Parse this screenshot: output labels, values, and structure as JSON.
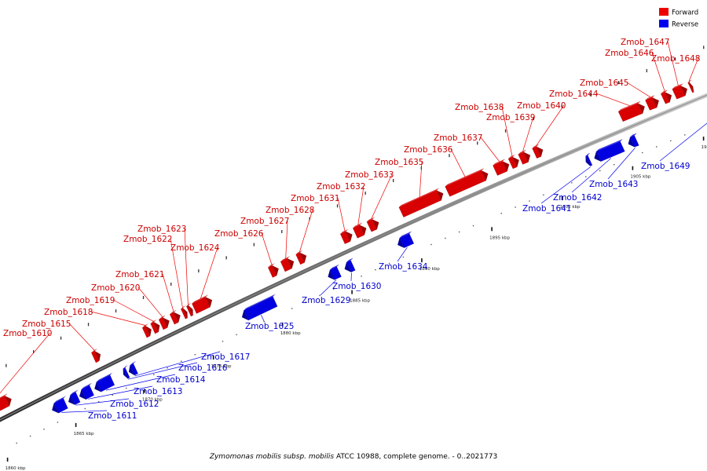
{
  "caption": {
    "organism": "Zymomonas mobilis subsp. mobilis",
    "rest": " ATCC 10988, complete genome. - 0..2021773"
  },
  "legend": [
    {
      "label": "Forward",
      "color": "#ee0000"
    },
    {
      "label": "Reverse",
      "color": "#0000ee"
    }
  ],
  "axis": {
    "scale_kbp": [
      1859.5,
      1912.5
    ],
    "tick_labels": [
      {
        "kbp": 1860,
        "label": "1860 kbp"
      },
      {
        "kbp": 1865,
        "label": "1865 kbp"
      },
      {
        "kbp": 1870,
        "label": "1870 kbp"
      },
      {
        "kbp": 1875,
        "label": "1875 kbp"
      },
      {
        "kbp": 1880,
        "label": "1880 kbp"
      },
      {
        "kbp": 1885,
        "label": "1885 kbp"
      },
      {
        "kbp": 1890,
        "label": "1890 kbp"
      },
      {
        "kbp": 1895,
        "label": "1895 kbp"
      },
      {
        "kbp": 1900,
        "label": "1900 kbp"
      },
      {
        "kbp": 1905,
        "label": "1905 kbp"
      },
      {
        "kbp": 1910,
        "label": "1910 kbp"
      }
    ]
  },
  "genes": [
    {
      "name": "Zmob_1610",
      "strand": "forward",
      "start_kbp": 1859.6,
      "end_kbp": 1861.9
    },
    {
      "name": "Zmob_1611",
      "strand": "reverse",
      "start_kbp": 1864.0,
      "end_kbp": 1865.0
    },
    {
      "name": "Zmob_1612",
      "strand": "reverse",
      "start_kbp": 1865.2,
      "end_kbp": 1865.9
    },
    {
      "name": "Zmob_1613",
      "strand": "reverse",
      "start_kbp": 1866.0,
      "end_kbp": 1866.9
    },
    {
      "name": "Zmob_1614",
      "strand": "reverse",
      "start_kbp": 1867.1,
      "end_kbp": 1868.4
    },
    {
      "name": "Zmob_1615",
      "strand": "forward",
      "start_kbp": 1867.9,
      "end_kbp": 1868.4
    },
    {
      "name": "Zmob_1616",
      "strand": "reverse",
      "start_kbp": 1869.2,
      "end_kbp": 1869.5
    },
    {
      "name": "Zmob_1617",
      "strand": "reverse",
      "start_kbp": 1869.6,
      "end_kbp": 1870.1
    },
    {
      "name": "Zmob_1618",
      "strand": "forward",
      "start_kbp": 1871.6,
      "end_kbp": 1872.1
    },
    {
      "name": "Zmob_1619",
      "strand": "forward",
      "start_kbp": 1872.2,
      "end_kbp": 1872.7
    },
    {
      "name": "Zmob_1620",
      "strand": "forward",
      "start_kbp": 1872.8,
      "end_kbp": 1873.4
    },
    {
      "name": "Zmob_1621",
      "strand": "forward",
      "start_kbp": 1873.6,
      "end_kbp": 1874.2
    },
    {
      "name": "Zmob_1622",
      "strand": "forward",
      "start_kbp": 1874.4,
      "end_kbp": 1874.7
    },
    {
      "name": "Zmob_1623",
      "strand": "forward",
      "start_kbp": 1874.8,
      "end_kbp": 1875.1
    },
    {
      "name": "Zmob_1624",
      "strand": "forward",
      "start_kbp": 1875.2,
      "end_kbp": 1876.5
    },
    {
      "name": "Zmob_1625",
      "strand": "reverse",
      "start_kbp": 1877.8,
      "end_kbp": 1880.2
    },
    {
      "name": "Zmob_1626",
      "strand": "forward",
      "start_kbp": 1880.7,
      "end_kbp": 1881.3
    },
    {
      "name": "Zmob_1627",
      "strand": "forward",
      "start_kbp": 1881.6,
      "end_kbp": 1882.4
    },
    {
      "name": "Zmob_1628",
      "strand": "forward",
      "start_kbp": 1882.7,
      "end_kbp": 1883.3
    },
    {
      "name": "Zmob_1629",
      "strand": "reverse",
      "start_kbp": 1884.0,
      "end_kbp": 1884.8
    },
    {
      "name": "Zmob_1630",
      "strand": "reverse",
      "start_kbp": 1885.2,
      "end_kbp": 1885.8
    },
    {
      "name": "Zmob_1631",
      "strand": "forward",
      "start_kbp": 1885.9,
      "end_kbp": 1886.6
    },
    {
      "name": "Zmob_1632",
      "strand": "forward",
      "start_kbp": 1886.8,
      "end_kbp": 1887.6
    },
    {
      "name": "Zmob_1633",
      "strand": "forward",
      "start_kbp": 1887.8,
      "end_kbp": 1888.5
    },
    {
      "name": "Zmob_1634",
      "strand": "reverse",
      "start_kbp": 1889.0,
      "end_kbp": 1890.0
    },
    {
      "name": "Zmob_1635",
      "strand": "forward",
      "start_kbp": 1890.1,
      "end_kbp": 1893.1
    },
    {
      "name": "Zmob_1636",
      "strand": "forward",
      "start_kbp": 1893.4,
      "end_kbp": 1896.3
    },
    {
      "name": "Zmob_1637",
      "strand": "forward",
      "start_kbp": 1896.8,
      "end_kbp": 1897.8
    },
    {
      "name": "Zmob_1638",
      "strand": "forward",
      "start_kbp": 1897.9,
      "end_kbp": 1898.5
    },
    {
      "name": "Zmob_1639",
      "strand": "forward",
      "start_kbp": 1898.6,
      "end_kbp": 1899.3
    },
    {
      "name": "Zmob_1640",
      "strand": "forward",
      "start_kbp": 1899.6,
      "end_kbp": 1900.2
    },
    {
      "name": "Zmob_1641",
      "strand": "reverse",
      "start_kbp": 1902.4,
      "end_kbp": 1902.7
    },
    {
      "name": "Zmob_1642",
      "strand": "reverse",
      "start_kbp": 1903.0,
      "end_kbp": 1905.0
    },
    {
      "name": "Zmob_1643",
      "strand": "reverse",
      "start_kbp": 1905.4,
      "end_kbp": 1906.0
    },
    {
      "name": "Zmob_1644",
      "strand": "forward",
      "start_kbp": 1905.7,
      "end_kbp": 1907.4
    },
    {
      "name": "Zmob_1645",
      "strand": "forward",
      "start_kbp": 1907.6,
      "end_kbp": 1908.4
    },
    {
      "name": "Zmob_1646",
      "strand": "forward",
      "start_kbp": 1908.7,
      "end_kbp": 1909.3
    },
    {
      "name": "Zmob_1647",
      "strand": "forward",
      "start_kbp": 1909.5,
      "end_kbp": 1910.4
    },
    {
      "name": "Zmob_1648",
      "strand": "forward",
      "start_kbp": 1910.6,
      "end_kbp": 1910.8
    },
    {
      "name": "Zmob_1649",
      "strand": "reverse",
      "start_kbp": 1911.0,
      "end_kbp": 1912.4
    }
  ]
}
